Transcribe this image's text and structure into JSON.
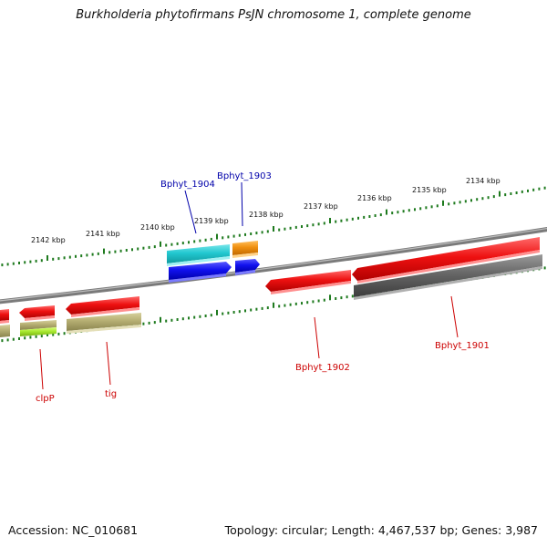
{
  "title": "Burkholderia phytofirmans PsJN chromosome 1, complete genome",
  "accession_text": "Accession: NC_010681",
  "topology_text": "Topology: circular; Length: 4,467,537 bp; Genes: 3,987",
  "scale_labels": [
    "2142 kbp",
    "2141 kbp",
    "2140 kbp",
    "2139 kbp",
    "2138 kbp",
    "2137 kbp",
    "2136 kbp",
    "2135 kbp",
    "2134 kbp"
  ],
  "gene_labels": {
    "bphyt_1904": "Bphyt_1904",
    "bphyt_1903": "Bphyt_1903",
    "bphyt_1902": "Bphyt_1902",
    "bphyt_1901": "Bphyt_1901",
    "clpp": "clpP",
    "tig": "tig"
  },
  "colors": {
    "backbone": "#808080",
    "cds_red": "#ee1111",
    "gene_gray": "#666666",
    "gene_olive": "#b5ae72",
    "gene_cyan": "#22c8d0",
    "gene_blue": "#1111ee",
    "gene_orange": "#f09010",
    "gene_lime": "#a8e830",
    "tick_green": "#1e7a1e",
    "label_red": "#cc0000",
    "label_blue": "#0000aa"
  }
}
